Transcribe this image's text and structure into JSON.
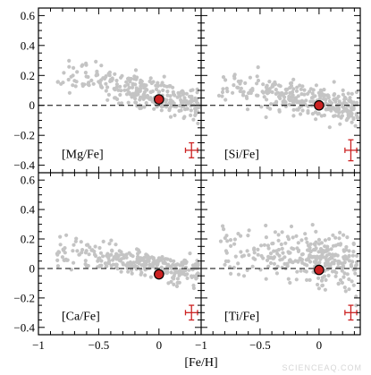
{
  "chart_data": {
    "type": "scatter",
    "xlabel": "[Fe/H]",
    "xlim": [
      -1.0,
      0.35
    ],
    "ylim": [
      -0.45,
      0.65
    ],
    "x_ticks": [
      -1,
      -0.5,
      0
    ],
    "x_tick_labels": [
      "−1",
      "−0.5",
      "0"
    ],
    "y_ticks": [
      -0.4,
      -0.2,
      0,
      0.2,
      0.4,
      0.6
    ],
    "y_tick_labels": [
      "−0.4",
      "−0.2",
      "0",
      "0.2",
      "0.4",
      "0.6"
    ],
    "reference_line_y": 0,
    "colors": {
      "field_stars": "#c4c4c4",
      "marker_fill": "#cc2222",
      "marker_edge": "#000000",
      "error_bar": "#cc2222",
      "reference_line": "#000000"
    },
    "panels": [
      {
        "label": "[Mg/Fe]",
        "position": "top-left",
        "highlight": {
          "x": 0.0,
          "y": 0.04
        },
        "error_bar": {
          "x": 0.27,
          "y": -0.3,
          "xerr": 0.05,
          "yerr": 0.05
        },
        "trend": {
          "slope": -0.19,
          "intercept": 0.06,
          "spread": 0.055
        }
      },
      {
        "label": "[Si/Fe]",
        "position": "top-right",
        "highlight": {
          "x": 0.0,
          "y": 0.0
        },
        "error_bar": {
          "x": 0.27,
          "y": -0.3,
          "xerr": 0.05,
          "yerr": 0.07
        },
        "trend": {
          "slope": -0.14,
          "intercept": 0.02,
          "spread": 0.05
        }
      },
      {
        "label": "[Ca/Fe]",
        "position": "bottom-left",
        "highlight": {
          "x": 0.0,
          "y": -0.04
        },
        "error_bar": {
          "x": 0.27,
          "y": -0.3,
          "xerr": 0.05,
          "yerr": 0.05
        },
        "trend": {
          "slope": -0.13,
          "intercept": 0.02,
          "spread": 0.045
        }
      },
      {
        "label": "[Ti/Fe]",
        "position": "bottom-right",
        "highlight": {
          "x": 0.0,
          "y": -0.01
        },
        "error_bar": {
          "x": 0.27,
          "y": -0.3,
          "xerr": 0.05,
          "yerr": 0.05
        },
        "trend": {
          "slope": -0.12,
          "intercept": 0.05,
          "spread": 0.085
        }
      }
    ]
  },
  "watermark": "SCIENCEAQ.COM"
}
